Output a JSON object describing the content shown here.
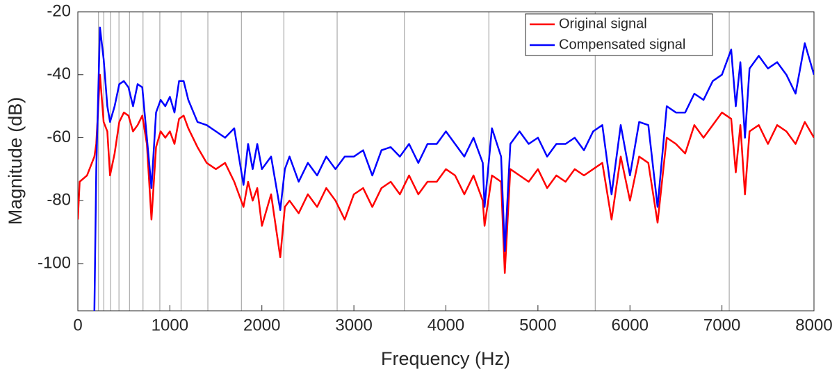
{
  "chart_data": {
    "type": "line",
    "xlabel": "Frequency (Hz)",
    "ylabel": "Magnitude (dB)",
    "x": [
      0,
      20,
      100,
      180,
      200,
      240,
      280,
      320,
      350,
      400,
      450,
      500,
      550,
      600,
      650,
      700,
      750,
      800,
      850,
      900,
      950,
      1000,
      1050,
      1100,
      1150,
      1200,
      1300,
      1400,
      1500,
      1600,
      1700,
      1800,
      1850,
      1900,
      1950,
      2000,
      2100,
      2200,
      2250,
      2300,
      2400,
      2500,
      2600,
      2700,
      2800,
      2900,
      3000,
      3100,
      3200,
      3300,
      3400,
      3500,
      3600,
      3700,
      3800,
      3900,
      4000,
      4100,
      4200,
      4300,
      4400,
      4420,
      4500,
      4600,
      4640,
      4700,
      4800,
      4900,
      5000,
      5100,
      5200,
      5300,
      5400,
      5500,
      5600,
      5700,
      5800,
      5900,
      6000,
      6100,
      6200,
      6300,
      6400,
      6500,
      6600,
      6700,
      6800,
      6900,
      7000,
      7100,
      7150,
      7200,
      7250,
      7300,
      7400,
      7500,
      7600,
      7700,
      7800,
      7900,
      8000
    ],
    "series": [
      {
        "name": "Original signal",
        "color": "#ff0000",
        "values": [
          -86,
          -74,
          -72,
          -66,
          -62,
          -40,
          -55,
          -58,
          -72,
          -65,
          -55,
          -52,
          -53,
          -58,
          -56,
          -53,
          -62,
          -86,
          -63,
          -58,
          -60,
          -58,
          -62,
          -54,
          -53,
          -57,
          -63,
          -68,
          -70,
          -68,
          -74,
          -82,
          -74,
          -80,
          -76,
          -88,
          -78,
          -98,
          -82,
          -80,
          -84,
          -78,
          -82,
          -76,
          -80,
          -86,
          -78,
          -76,
          -82,
          -76,
          -74,
          -78,
          -72,
          -78,
          -74,
          -74,
          -70,
          -72,
          -78,
          -72,
          -80,
          -88,
          -72,
          -74,
          -103,
          -70,
          -72,
          -74,
          -70,
          -76,
          -72,
          -74,
          -70,
          -72,
          -70,
          -68,
          -86,
          -66,
          -80,
          -66,
          -68,
          -87,
          -60,
          -62,
          -65,
          -56,
          -60,
          -56,
          -52,
          -54,
          -71,
          -56,
          -78,
          -58,
          -56,
          -62,
          -56,
          -58,
          -62,
          -55,
          -60
        ]
      },
      {
        "name": "Compensated signal",
        "color": "#0000ff",
        "values": [
          null,
          null,
          null,
          -115,
          -70,
          -25,
          -35,
          -50,
          -55,
          -50,
          -43,
          -42,
          -44,
          -50,
          -43,
          -44,
          -60,
          -76,
          -52,
          -48,
          -50,
          -47,
          -52,
          -42,
          -42,
          -48,
          -55,
          -56,
          -58,
          -60,
          -57,
          -75,
          -62,
          -70,
          -62,
          -70,
          -66,
          -83,
          -70,
          -66,
          -74,
          -68,
          -72,
          -66,
          -70,
          -66,
          -66,
          -64,
          -72,
          -64,
          -63,
          -66,
          -62,
          -68,
          -62,
          -62,
          -58,
          -62,
          -66,
          -60,
          -68,
          -82,
          -57,
          -66,
          -96,
          -62,
          -58,
          -62,
          -60,
          -66,
          -62,
          -62,
          -60,
          -64,
          -58,
          -56,
          -78,
          -56,
          -72,
          -55,
          -56,
          -82,
          -50,
          -52,
          -52,
          -46,
          -48,
          -42,
          -40,
          -32,
          -50,
          -36,
          -60,
          -38,
          -34,
          -38,
          -36,
          -40,
          -46,
          -30,
          -40
        ]
      }
    ],
    "vlines": [
      224,
      282,
      355,
      447,
      562,
      708,
      891,
      1122,
      1413,
      1778,
      2239,
      2818,
      3548,
      4467,
      5623,
      7079
    ],
    "vline_color": "#b0b0b0",
    "xlim": [
      0,
      8000
    ],
    "xticks": [
      0,
      1000,
      2000,
      3000,
      4000,
      5000,
      6000,
      7000,
      8000
    ],
    "ylim": [
      -115,
      -20
    ],
    "yticks": [
      -100,
      -80,
      -60,
      -40,
      -20
    ],
    "legend": "top-right"
  }
}
